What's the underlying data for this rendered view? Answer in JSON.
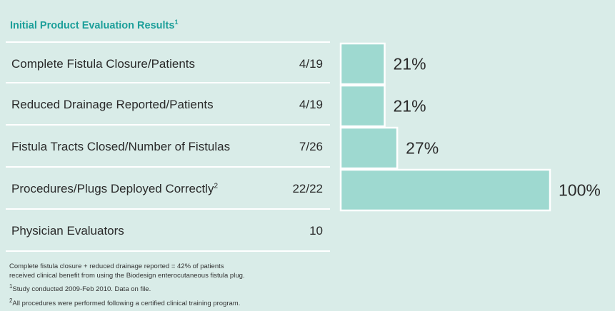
{
  "title": "Initial Product Evaluation Results",
  "title_footnote": "1",
  "rows": [
    {
      "label": "Complete Fistula Closure/Patients",
      "footnote": "",
      "value": "4/19"
    },
    {
      "label": "Reduced Drainage Reported/Patients",
      "footnote": "",
      "value": "4/19"
    },
    {
      "label": "Fistula Tracts Closed/Number of Fistulas",
      "footnote": "",
      "value": "7/26"
    },
    {
      "label": "Procedures/Plugs Deployed Correctly",
      "footnote": "2",
      "value": "22/22"
    },
    {
      "label": "Physician Evaluators",
      "footnote": "",
      "value": "10"
    }
  ],
  "notes": {
    "line1": "Complete fistula closure + reduced drainage reported = 42% of patients",
    "line2": "received clinical benefit from using the Biodesign enterocutaneous fistula plug.",
    "fn1_mark": "1",
    "fn1": "Study conducted 2009-Feb 2010. Data on file.",
    "fn2_mark": "2",
    "fn2": "All procedures were performed following a certified clinical training program."
  },
  "colors": {
    "background": "#d9ece8",
    "title": "#1c9f9a",
    "bar_fill": "#9ed9d0",
    "bar_stroke": "#ffffff"
  },
  "chart_data": {
    "type": "bar",
    "orientation": "horizontal",
    "categories": [
      "Complete Fistula Closure/Patients",
      "Reduced Drainage Reported/Patients",
      "Fistula Tracts Closed/Number of Fistulas",
      "Procedures/Plugs Deployed Correctly"
    ],
    "values": [
      21,
      21,
      27,
      100
    ],
    "labels": [
      "21%",
      "21%",
      "27%",
      "100%"
    ],
    "xlim": [
      0,
      100
    ],
    "grid": false
  }
}
